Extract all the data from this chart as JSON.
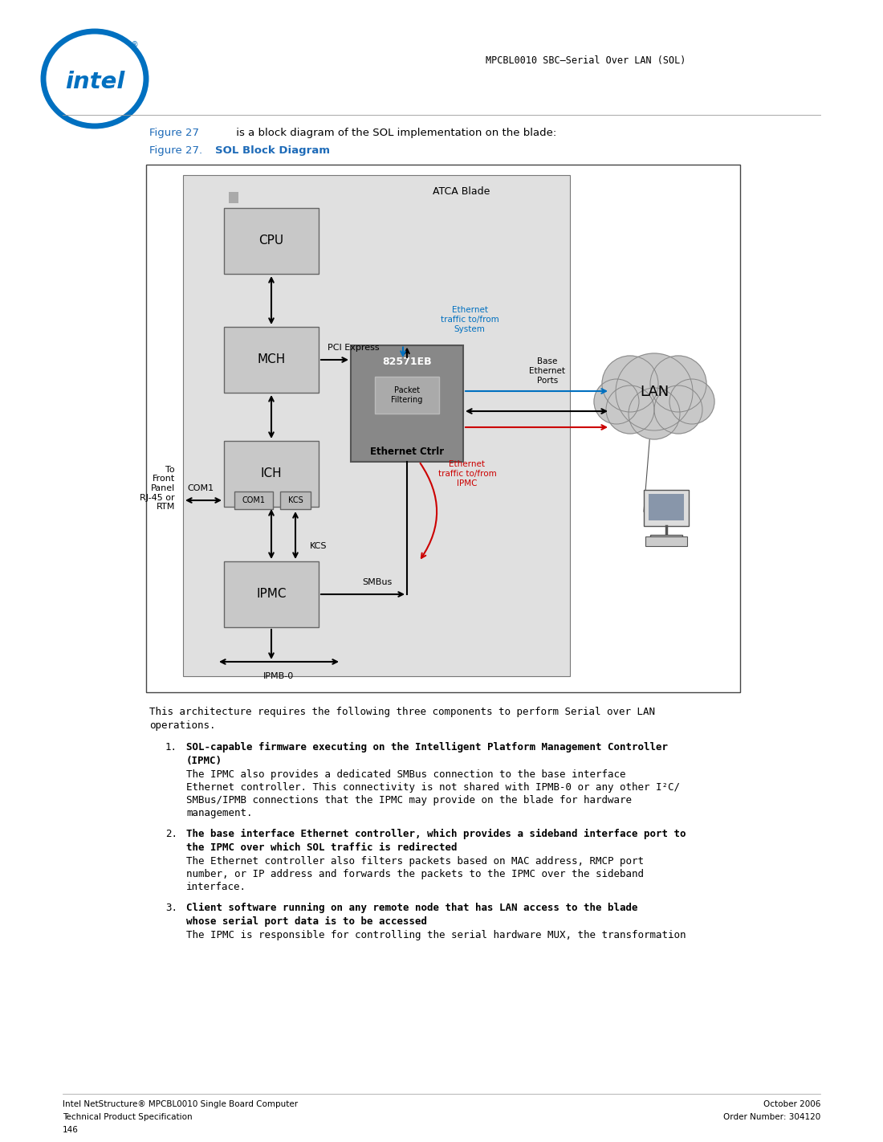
{
  "page_title": "MPCBL0010 SBC—Serial Over LAN (SOL)",
  "figure_ref_text": "Figure 27",
  "figure_ref_desc": " is a block diagram of the SOL implementation on the blade:",
  "figure_caption_num": "Figure 27.",
  "figure_caption_title": "SOL Block Diagram",
  "diagram_label_atca": "ATCA Blade",
  "block_cpu": "CPU",
  "block_mch": "MCH",
  "block_ich": "ICH",
  "block_ipmc": "IPMC",
  "block_eth": "82571EB",
  "block_eth_sub": "Packet\nFiltering",
  "block_eth_label": "Ethernet Ctrlr",
  "block_lan": "LAN",
  "label_com1_box": "COM1",
  "label_kcs_box": "KCS",
  "label_com1_line": "COM1",
  "label_kcs_line": "KCS",
  "label_pci": "PCI Express",
  "label_smbus": "SMBus",
  "label_ipmb": "IPMB-0",
  "label_eth_traffic_blue": "Ethernet\ntraffic to/from\nSystem",
  "label_eth_traffic_red": "Ethernet\ntraffic to/from\nIPMC",
  "label_base_eth": "Base\nEthernet\nPorts",
  "label_to_front": "To\nFront\nPanel\nRJ-45 or\nRTM",
  "body_para1_line1": "This architecture requires the following three components to perform Serial over LAN",
  "body_para1_line2": "operations.",
  "item1_bold": "SOL-capable firmware executing on the Intelligent Platform Management Controller",
  "item1_bold2": "(IPMC)",
  "item1_text": "The IPMC also provides a dedicated SMBus connection to the base interface\nEthernet controller. This connectivity is not shared with IPMB-0 or any other I²C/\nSMBus/IPMB connections that the IPMC may provide on the blade for hardware\nmanagement.",
  "item2_bold": "The base interface Ethernet controller, which provides a sideband interface port to",
  "item2_bold2": "the IPMC over which SOL traffic is redirected",
  "item2_text": "The Ethernet controller also filters packets based on MAC address, RMCP port\nnumber, or IP address and forwards the packets to the IPMC over the sideband\ninterface.",
  "item3_bold": "Client software running on any remote node that has LAN access to the blade",
  "item3_bold2": "whose serial port data is to be accessed",
  "item3_text": "The IPMC is responsible for controlling the serial hardware MUX, the transformation",
  "footer_left1": "Intel NetStructure® MPCBL0010 Single Board Computer",
  "footer_left2": "Technical Product Specification",
  "footer_left3": "146",
  "footer_right1": "October 2006",
  "footer_right2": "Order Number: 304120",
  "color_blue": "#0070C0",
  "color_red": "#CC0000",
  "color_black": "#000000",
  "color_box_fill": "#C8C8C8",
  "color_box_fill_dark": "#A0A0A0",
  "color_eth_box": "#888888",
  "color_pf_box": "#AAAAAA",
  "color_diagram_bg": "#E0E0E0",
  "color_cloud": "#C8C8C8",
  "color_white": "#FFFFFF",
  "color_caption_blue": "#1E6BB8"
}
